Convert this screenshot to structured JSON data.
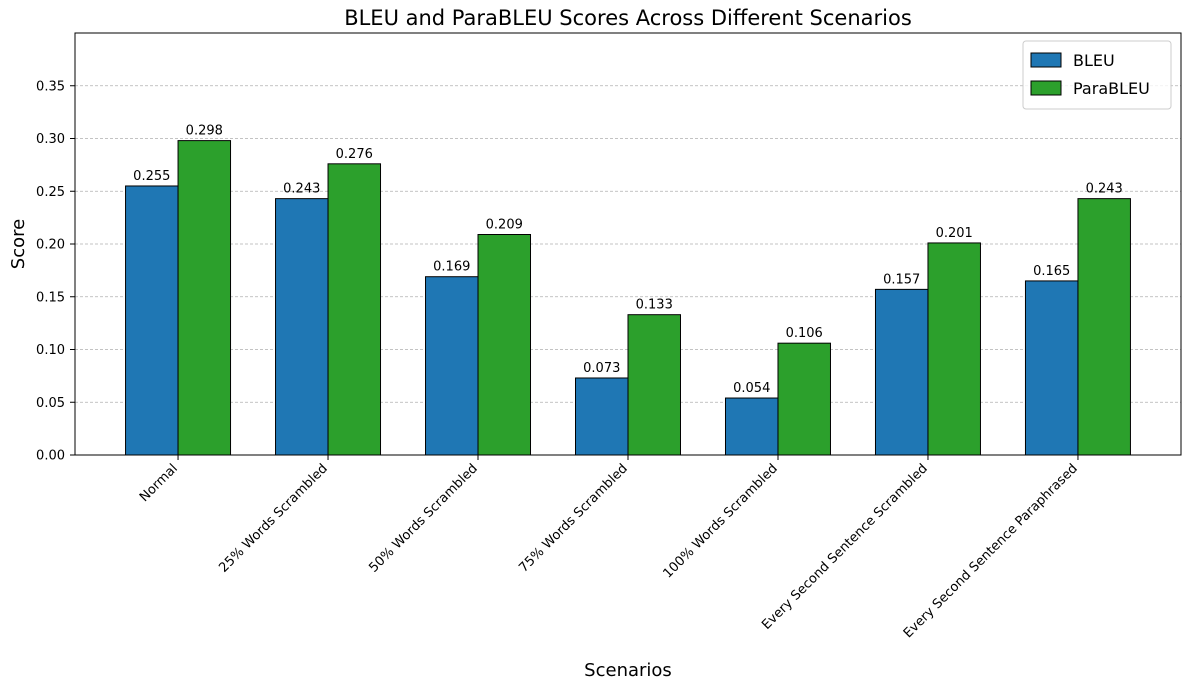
{
  "chart_data": {
    "type": "bar",
    "title": "BLEU and ParaBLEU Scores Across Different Scenarios",
    "x_label": "Scenarios",
    "y_label": "Score",
    "categories": [
      "Normal",
      "25% Words Scrambled",
      "50% Words Scrambled",
      "75% Words Scrambled",
      "100% Words Scrambled",
      "Every Second Sentence Scrambled",
      "Every Second Sentence Paraphrased"
    ],
    "series": [
      {
        "name": "BLEU",
        "color": "#1f77b4",
        "values": [
          0.255,
          0.243,
          0.169,
          0.073,
          0.054,
          0.157,
          0.165
        ]
      },
      {
        "name": "ParaBLEU",
        "color": "#2ca02c",
        "values": [
          0.298,
          0.276,
          0.209,
          0.133,
          0.106,
          0.201,
          0.243
        ]
      }
    ],
    "ylim": [
      0,
      0.4
    ],
    "yticks": [
      {
        "value": 0,
        "label": "0.00"
      },
      0.05,
      {
        "value": 0.1,
        "label": "0.10"
      },
      0.15,
      {
        "value": 0.2,
        "label": "0.20"
      },
      0.25,
      {
        "value": 0.3,
        "label": "0.30"
      },
      0.35
    ],
    "grid": true,
    "legend_position": "upper-right"
  }
}
